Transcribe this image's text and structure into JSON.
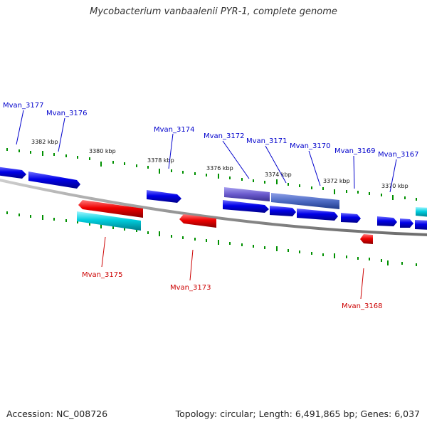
{
  "title": "Mycobacterium vanbaalenii PYR-1, complete genome",
  "footer": {
    "accession": "Accession: NC_008726",
    "topology": "Topology: circular; Length: 6,491,865 bp; Genes: 6,037"
  },
  "colors": {
    "forward_cds": "#0000e0",
    "reverse_cds": "#e00000",
    "forward_other": "#00c8d8",
    "highlight_cds": "#6a5acd",
    "tick_green": "#008000",
    "backbone": "#888888",
    "forward_label": "#0000cc",
    "reverse_label": "#cc0000"
  },
  "kbp_labels": [
    "3382 kbp",
    "3380 kbp",
    "3378 kbp",
    "3376 kbp",
    "3374 kbp",
    "3372 kbp",
    "3370 kbp"
  ],
  "forward_genes": [
    "Mvan_3177",
    "Mvan_3176",
    "Mvan_3174",
    "Mvan_3172",
    "Mvan_3171",
    "Mvan_3170",
    "Mvan_3169",
    "Mvan_3167"
  ],
  "reverse_genes": [
    "Mvan_3175",
    "Mvan_3173",
    "Mvan_3168"
  ]
}
